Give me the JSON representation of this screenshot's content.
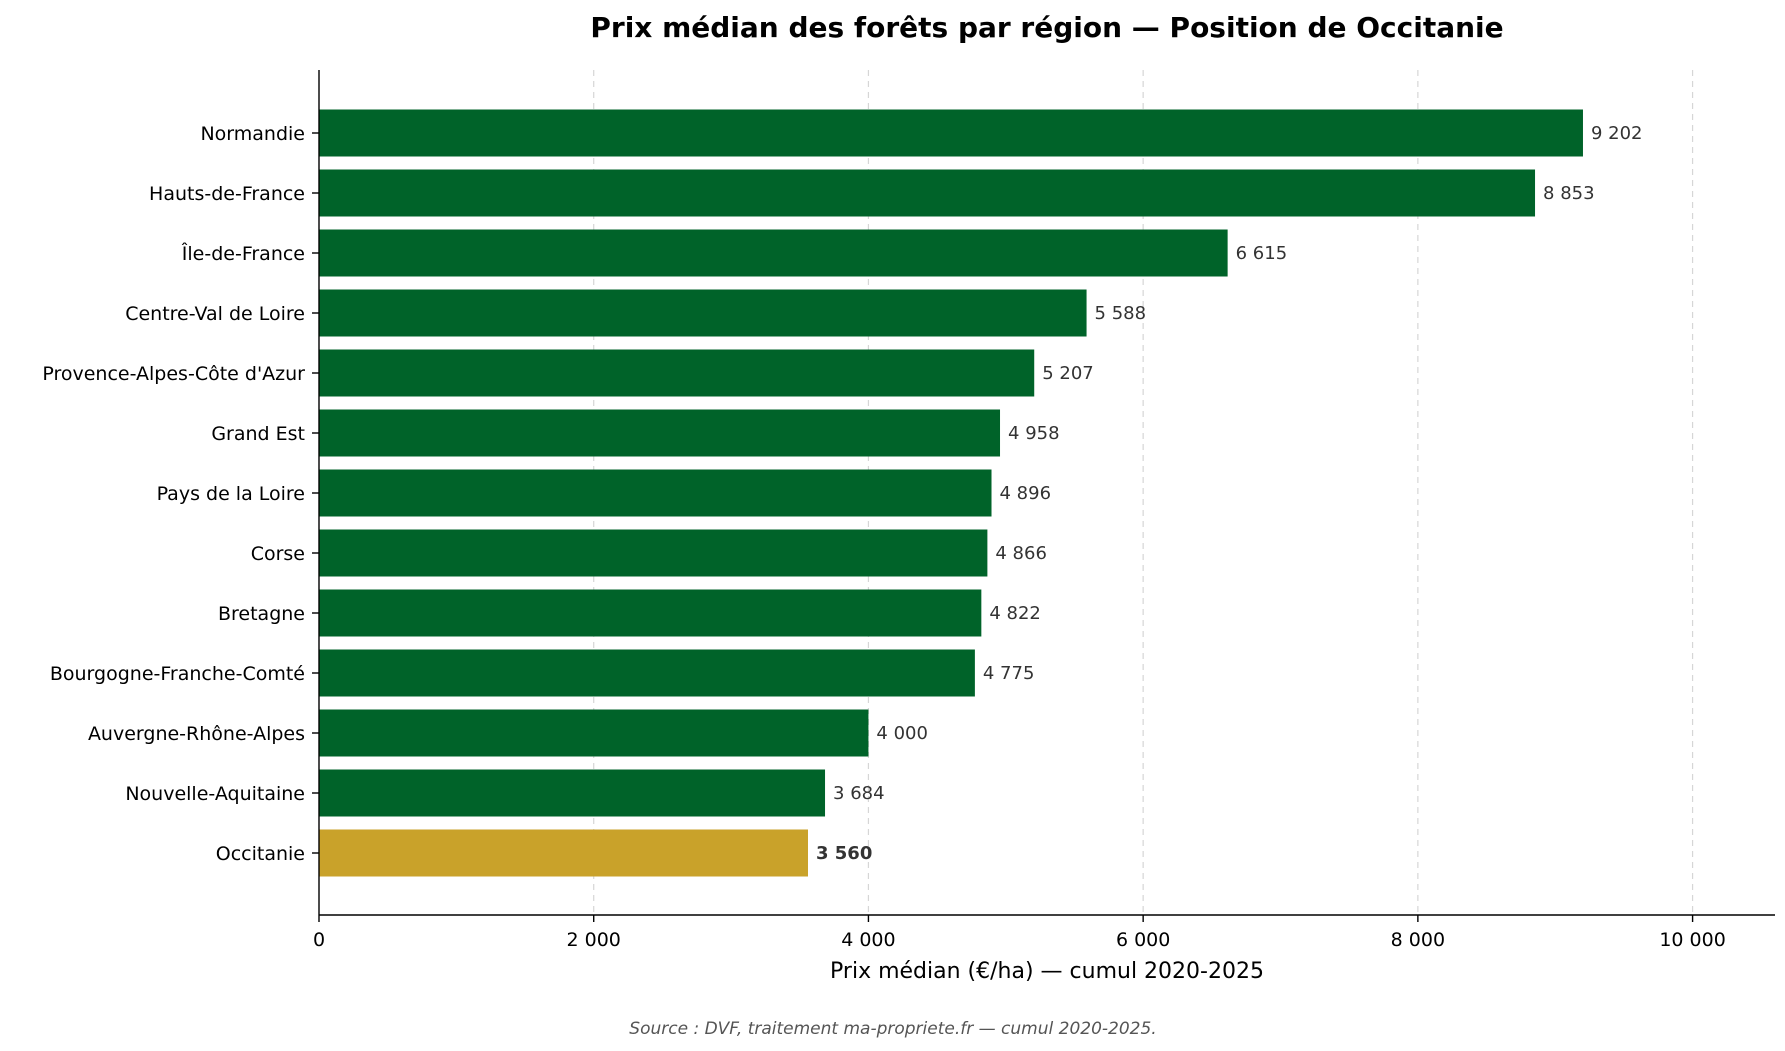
{
  "chart_data": {
    "type": "bar",
    "orientation": "horizontal",
    "title": "Prix médian des forêts par région — Position de Occitanie",
    "xlabel": "Prix médian (€/ha) — cumul 2020-2025",
    "ylabel": "",
    "xlim": [
      0,
      10600
    ],
    "xticks": [
      0,
      2000,
      4000,
      6000,
      8000,
      10000
    ],
    "xtick_labels": [
      "0",
      "2 000",
      "4 000",
      "6 000",
      "8 000",
      "10 000"
    ],
    "grid": "x-axis dashed",
    "categories": [
      "Normandie",
      "Hauts-de-France",
      "Île-de-France",
      "Centre-Val de Loire",
      "Provence-Alpes-Côte d'Azur",
      "Grand Est",
      "Pays de la Loire",
      "Corse",
      "Bretagne",
      "Bourgogne-Franche-Comté",
      "Auvergne-Rhône-Alpes",
      "Nouvelle-Aquitaine",
      "Occitanie"
    ],
    "values": [
      9202,
      8853,
      6615,
      5588,
      5207,
      4958,
      4896,
      4866,
      4822,
      4775,
      4000,
      3684,
      3560
    ],
    "value_labels": [
      "9 202",
      "8 853",
      "6 615",
      "5 588",
      "5 207",
      "4 958",
      "4 896",
      "4 866",
      "4 822",
      "4 775",
      "4 000",
      "3 684",
      "3 560"
    ],
    "highlight": "Occitanie",
    "colors": {
      "bar": "#006329",
      "highlight": "#c9a22a",
      "value_text": "#333333"
    }
  },
  "source_note": "Source : DVF, traitement ma-propriete.fr — cumul 2020-2025."
}
